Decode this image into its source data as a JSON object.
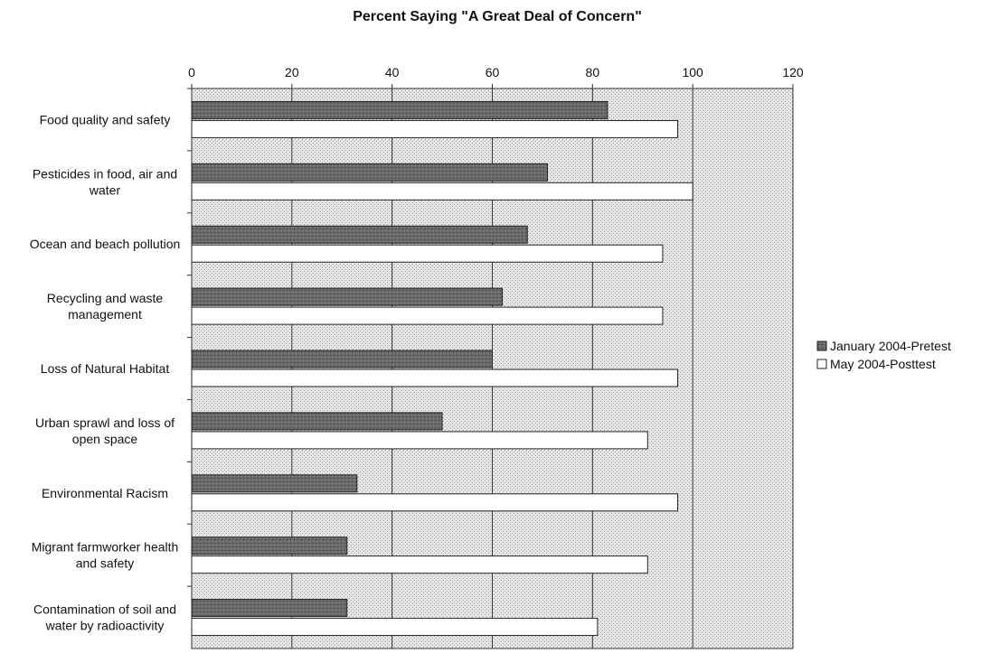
{
  "chart_data": {
    "type": "bar",
    "orientation": "horizontal",
    "title": "Percent Saying \"A Great Deal of Concern\"",
    "xlabel": "",
    "ylabel": "",
    "xlim": [
      0,
      120
    ],
    "xticks": [
      0,
      20,
      40,
      60,
      80,
      100,
      120
    ],
    "grid": true,
    "legend_position": "right",
    "categories": [
      "Food quality and safety",
      "Pesticides in food, air and water",
      "Ocean and beach pollution",
      "Recycling and waste management",
      "Loss of Natural Habitat",
      "Urban sprawl and loss of open space",
      "Environmental Racism",
      "Migrant farmworker health and safety",
      "Contamination of soil and water by radioactivity"
    ],
    "series": [
      {
        "name": "January 2004-Pretest",
        "color": "#666666",
        "values": [
          83,
          71,
          67,
          62,
          60,
          50,
          33,
          31,
          31
        ]
      },
      {
        "name": "May 2004-Posttest",
        "color": "#ffffff",
        "values": [
          97,
          100,
          94,
          94,
          97,
          91,
          97,
          91,
          81
        ]
      }
    ]
  }
}
